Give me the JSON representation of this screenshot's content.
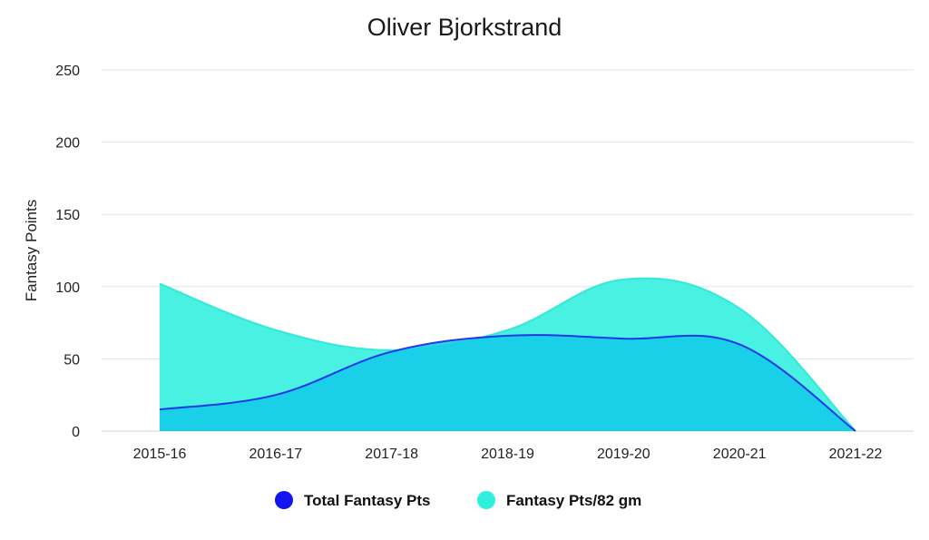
{
  "chart_data": {
    "type": "area",
    "title": "Oliver Bjorkstrand",
    "xlabel": "",
    "ylabel": "Fantasy Points",
    "categories": [
      "2015-16",
      "2016-17",
      "2017-18",
      "2018-19",
      "2019-20",
      "2020-21",
      "2021-22"
    ],
    "ylim": [
      0,
      250
    ],
    "yticks": [
      0,
      50,
      100,
      150,
      200,
      250
    ],
    "grid": true,
    "legend_position": "bottom",
    "series": [
      {
        "name": "Total Fantasy Pts",
        "values": [
          15,
          25,
          55,
          66,
          64,
          60,
          0
        ],
        "color": "#1a1ae6",
        "fill": "#17cde8"
      },
      {
        "name": "Fantasy Pts/82 gm",
        "values": [
          102,
          70,
          56,
          70,
          105,
          85,
          0
        ],
        "color": "#2ee6d6",
        "fill": "#3ef0e0"
      }
    ]
  }
}
